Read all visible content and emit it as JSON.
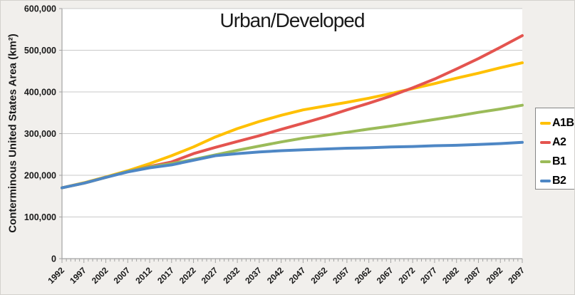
{
  "figure": {
    "background": "#f1efec",
    "plot_background": "#ffffff",
    "gridline_color": "#c9c9c9",
    "axis_color": "#a3a3a3",
    "text_color": "#1a1a1a"
  },
  "chart_data": {
    "type": "line",
    "title": "Urban/Developed",
    "xlabel": "",
    "ylabel": "Conterminous United States Area (km²)",
    "xlim": [
      1992,
      2097
    ],
    "ylim": [
      0,
      600000
    ],
    "ytick_step": 100000,
    "ytick_labels": [
      "0",
      "100,000",
      "200,000",
      "300,000",
      "400,000",
      "500,000",
      "600,000"
    ],
    "xtick_label_step_years": 5,
    "minor_xtick_every_years": 1,
    "grid": "horizontal",
    "legend_position": "right",
    "x": [
      1992,
      1997,
      2002,
      2007,
      2012,
      2017,
      2022,
      2027,
      2032,
      2037,
      2042,
      2047,
      2052,
      2057,
      2062,
      2067,
      2072,
      2077,
      2082,
      2087,
      2092,
      2097
    ],
    "series": [
      {
        "name": "A1B",
        "color": "#FFC000",
        "values": [
          170000,
          182000,
          196000,
          211000,
          228000,
          247000,
          268000,
          292000,
          312000,
          329000,
          344000,
          357000,
          366000,
          375000,
          385000,
          396000,
          408000,
          420000,
          433000,
          445000,
          458000,
          470000
        ]
      },
      {
        "name": "A2",
        "color": "#E4544F",
        "values": [
          170000,
          181000,
          195000,
          209000,
          221000,
          232000,
          252000,
          267000,
          281000,
          295000,
          310000,
          325000,
          340000,
          357000,
          373000,
          390000,
          410000,
          431000,
          455000,
          480000,
          507000,
          535000
        ]
      },
      {
        "name": "B1",
        "color": "#9BBB59",
        "values": [
          170000,
          181000,
          195000,
          209000,
          220000,
          228000,
          238000,
          249000,
          260000,
          270000,
          280000,
          289000,
          296000,
          303000,
          311000,
          318000,
          326000,
          334000,
          342000,
          351000,
          359000,
          368000
        ]
      },
      {
        "name": "B2",
        "color": "#4E87C5",
        "values": [
          170000,
          181000,
          195000,
          208000,
          218000,
          225000,
          236000,
          247000,
          252000,
          256000,
          259000,
          261000,
          263000,
          265000,
          266000,
          268000,
          269000,
          271000,
          272000,
          274000,
          276000,
          279000
        ]
      }
    ]
  }
}
